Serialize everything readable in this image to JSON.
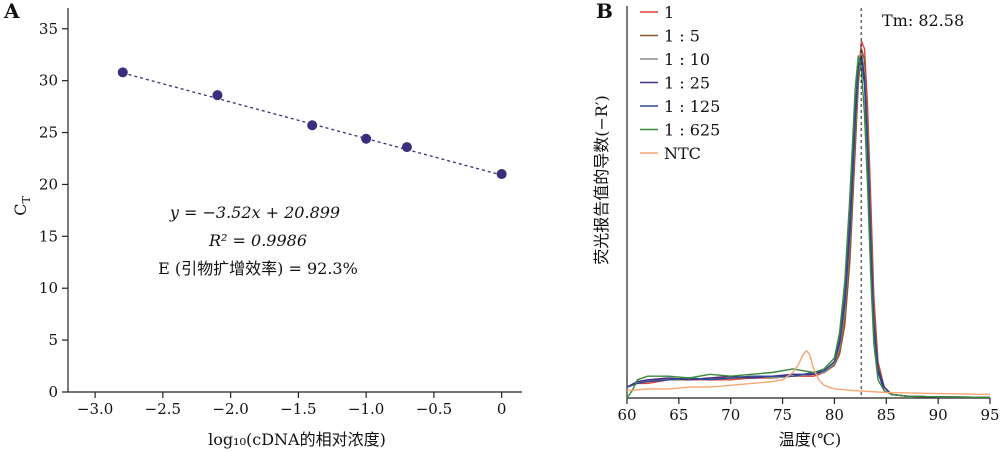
{
  "panel_a": {
    "label": "A",
    "ylabel_main": "C",
    "ylabel_sub": "T",
    "xlabel": "log₁₀(cDNA的相对浓度)",
    "equation": "y = −3.52x + 20.899",
    "r2": "R² = 0.9986",
    "efficiency": "E (引物扩增效率) = 92.3%",
    "colors": {
      "point": "#3a2f7a",
      "fit": "#3a2f7a",
      "axis": "#222222"
    }
  },
  "panel_b": {
    "label": "B",
    "ylabel": "荧光报告值的导数(−R′)",
    "xlabel": "温度(℃)",
    "tm_label": "Tm: 82.58"
  },
  "chart_data": [
    {
      "type": "scatter",
      "panel": "A",
      "xlabel": "log₁₀(cDNA的相对浓度)",
      "ylabel": "C_T",
      "x": [
        -2.796,
        -2.097,
        -1.398,
        -1.0,
        -0.699,
        0.0
      ],
      "y": [
        30.8,
        28.6,
        25.7,
        24.4,
        23.6,
        21.0
      ],
      "fit": {
        "slope": -3.52,
        "intercept": 20.899,
        "r2": 0.9986,
        "efficiency": "92.3%",
        "x_range": [
          -2.796,
          0.0
        ]
      },
      "xlim": [
        -3.2,
        0.15
      ],
      "ylim": [
        0,
        37
      ],
      "xticks": [
        -3.0,
        -2.5,
        -2.0,
        -1.5,
        -1.0,
        -0.5,
        0
      ],
      "xtick_labels": [
        "−3.0",
        "−2.5",
        "−2.0",
        "−1.5",
        "−1.0",
        "−0.5",
        "0"
      ],
      "yticks": [
        0,
        5,
        10,
        15,
        20,
        25,
        30,
        35
      ],
      "grid": false
    },
    {
      "type": "line",
      "panel": "B",
      "xlabel": "温度(℃)",
      "ylabel": "荧光报告值的导数(−R′)",
      "xlim": [
        60,
        95
      ],
      "ylim": [
        0,
        1
      ],
      "xticks": [
        60,
        65,
        70,
        75,
        80,
        85,
        90,
        95
      ],
      "legend_position": "top-left",
      "tm": 82.58,
      "series": [
        {
          "name": "1",
          "color": "#e0403a",
          "x": [
            60,
            61,
            62,
            64,
            66,
            68,
            70,
            72,
            74,
            76,
            78,
            79,
            80,
            80.5,
            81,
            81.5,
            82,
            82.3,
            82.6,
            82.9,
            83.2,
            83.5,
            83.8,
            84.2,
            84.8,
            85.5,
            87,
            90,
            95
          ],
          "y": [
            0.03,
            0.04,
            0.04,
            0.05,
            0.05,
            0.05,
            0.05,
            0.055,
            0.055,
            0.06,
            0.06,
            0.07,
            0.09,
            0.13,
            0.22,
            0.4,
            0.7,
            0.88,
            0.98,
            0.96,
            0.8,
            0.55,
            0.28,
            0.1,
            0.03,
            0.01,
            0.005,
            0.003,
            0.002
          ]
        },
        {
          "name": "1 : 5",
          "color": "#8a5a2b",
          "x": [
            60,
            61,
            62,
            64,
            66,
            68,
            70,
            72,
            74,
            76,
            78,
            79,
            80,
            80.5,
            81,
            81.5,
            82,
            82.3,
            82.6,
            82.9,
            83.2,
            83.5,
            83.8,
            84.2,
            84.8,
            85.5,
            87,
            90,
            95
          ],
          "y": [
            0.03,
            0.045,
            0.045,
            0.05,
            0.05,
            0.055,
            0.055,
            0.055,
            0.06,
            0.06,
            0.065,
            0.07,
            0.09,
            0.12,
            0.2,
            0.38,
            0.68,
            0.86,
            0.96,
            0.93,
            0.76,
            0.5,
            0.25,
            0.09,
            0.03,
            0.01,
            0.005,
            0.003,
            0.002
          ]
        },
        {
          "name": "1 : 10",
          "color": "#8c8c8c",
          "x": [
            60,
            61,
            62,
            64,
            66,
            68,
            70,
            72,
            74,
            76,
            78,
            79,
            80,
            80.5,
            81,
            81.5,
            82,
            82.3,
            82.6,
            82.9,
            83.2,
            83.5,
            83.8,
            84.2,
            84.8,
            85.5,
            87,
            90,
            95
          ],
          "y": [
            0.03,
            0.04,
            0.05,
            0.05,
            0.055,
            0.05,
            0.055,
            0.06,
            0.055,
            0.06,
            0.065,
            0.07,
            0.095,
            0.14,
            0.24,
            0.44,
            0.74,
            0.9,
            0.95,
            0.9,
            0.72,
            0.46,
            0.22,
            0.08,
            0.03,
            0.01,
            0.005,
            0.003,
            0.002
          ]
        },
        {
          "name": "1 : 25",
          "color": "#4a2a82",
          "x": [
            60,
            61,
            62,
            64,
            66,
            68,
            70,
            72,
            74,
            76,
            78,
            79,
            80,
            80.5,
            81,
            81.5,
            82,
            82.3,
            82.6,
            82.9,
            83.2,
            83.5,
            83.8,
            84.2,
            84.8,
            85.5,
            87,
            90,
            95
          ],
          "y": [
            0.03,
            0.045,
            0.05,
            0.055,
            0.05,
            0.055,
            0.06,
            0.055,
            0.06,
            0.065,
            0.065,
            0.075,
            0.1,
            0.15,
            0.26,
            0.46,
            0.76,
            0.91,
            0.94,
            0.88,
            0.7,
            0.44,
            0.21,
            0.08,
            0.03,
            0.01,
            0.005,
            0.003,
            0.002
          ]
        },
        {
          "name": "1 : 125",
          "color": "#2b4a9a",
          "x": [
            60,
            61,
            62,
            64,
            66,
            68,
            70,
            72,
            74,
            76,
            78,
            79,
            80,
            80.5,
            81,
            81.5,
            82,
            82.3,
            82.6,
            82.9,
            83.2,
            83.5,
            83.8,
            84.2,
            84.8,
            85.5,
            87,
            90,
            95
          ],
          "y": [
            0.03,
            0.04,
            0.045,
            0.05,
            0.055,
            0.05,
            0.055,
            0.06,
            0.06,
            0.06,
            0.07,
            0.075,
            0.1,
            0.16,
            0.28,
            0.5,
            0.79,
            0.92,
            0.93,
            0.86,
            0.67,
            0.41,
            0.19,
            0.07,
            0.02,
            0.01,
            0.005,
            0.003,
            0.002
          ]
        },
        {
          "name": "1 : 625",
          "color": "#3a8a3a",
          "x": [
            60,
            60.5,
            61,
            62,
            64,
            66,
            68,
            70,
            72,
            74,
            76,
            78,
            79,
            80,
            80.5,
            81,
            81.5,
            82,
            82.3,
            82.6,
            82.9,
            83.2,
            83.5,
            83.8,
            84.2,
            84.8,
            85.5,
            87,
            90,
            95
          ],
          "y": [
            0.0,
            0.02,
            0.05,
            0.06,
            0.06,
            0.055,
            0.065,
            0.06,
            0.065,
            0.07,
            0.08,
            0.07,
            0.08,
            0.11,
            0.18,
            0.32,
            0.56,
            0.85,
            0.94,
            0.9,
            0.78,
            0.58,
            0.34,
            0.15,
            0.05,
            0.02,
            0.01,
            0.005,
            0.003,
            0.002
          ]
        },
        {
          "name": "NTC",
          "color": "#f2a774",
          "x": [
            60,
            62,
            64,
            66,
            68,
            70,
            72,
            74,
            75,
            76,
            76.5,
            77,
            77.3,
            77.6,
            78,
            78.5,
            79,
            80,
            82,
            85,
            90,
            95
          ],
          "y": [
            0.02,
            0.025,
            0.025,
            0.03,
            0.03,
            0.035,
            0.04,
            0.045,
            0.05,
            0.07,
            0.09,
            0.12,
            0.13,
            0.12,
            0.08,
            0.05,
            0.035,
            0.025,
            0.02,
            0.015,
            0.012,
            0.01
          ]
        }
      ]
    }
  ]
}
